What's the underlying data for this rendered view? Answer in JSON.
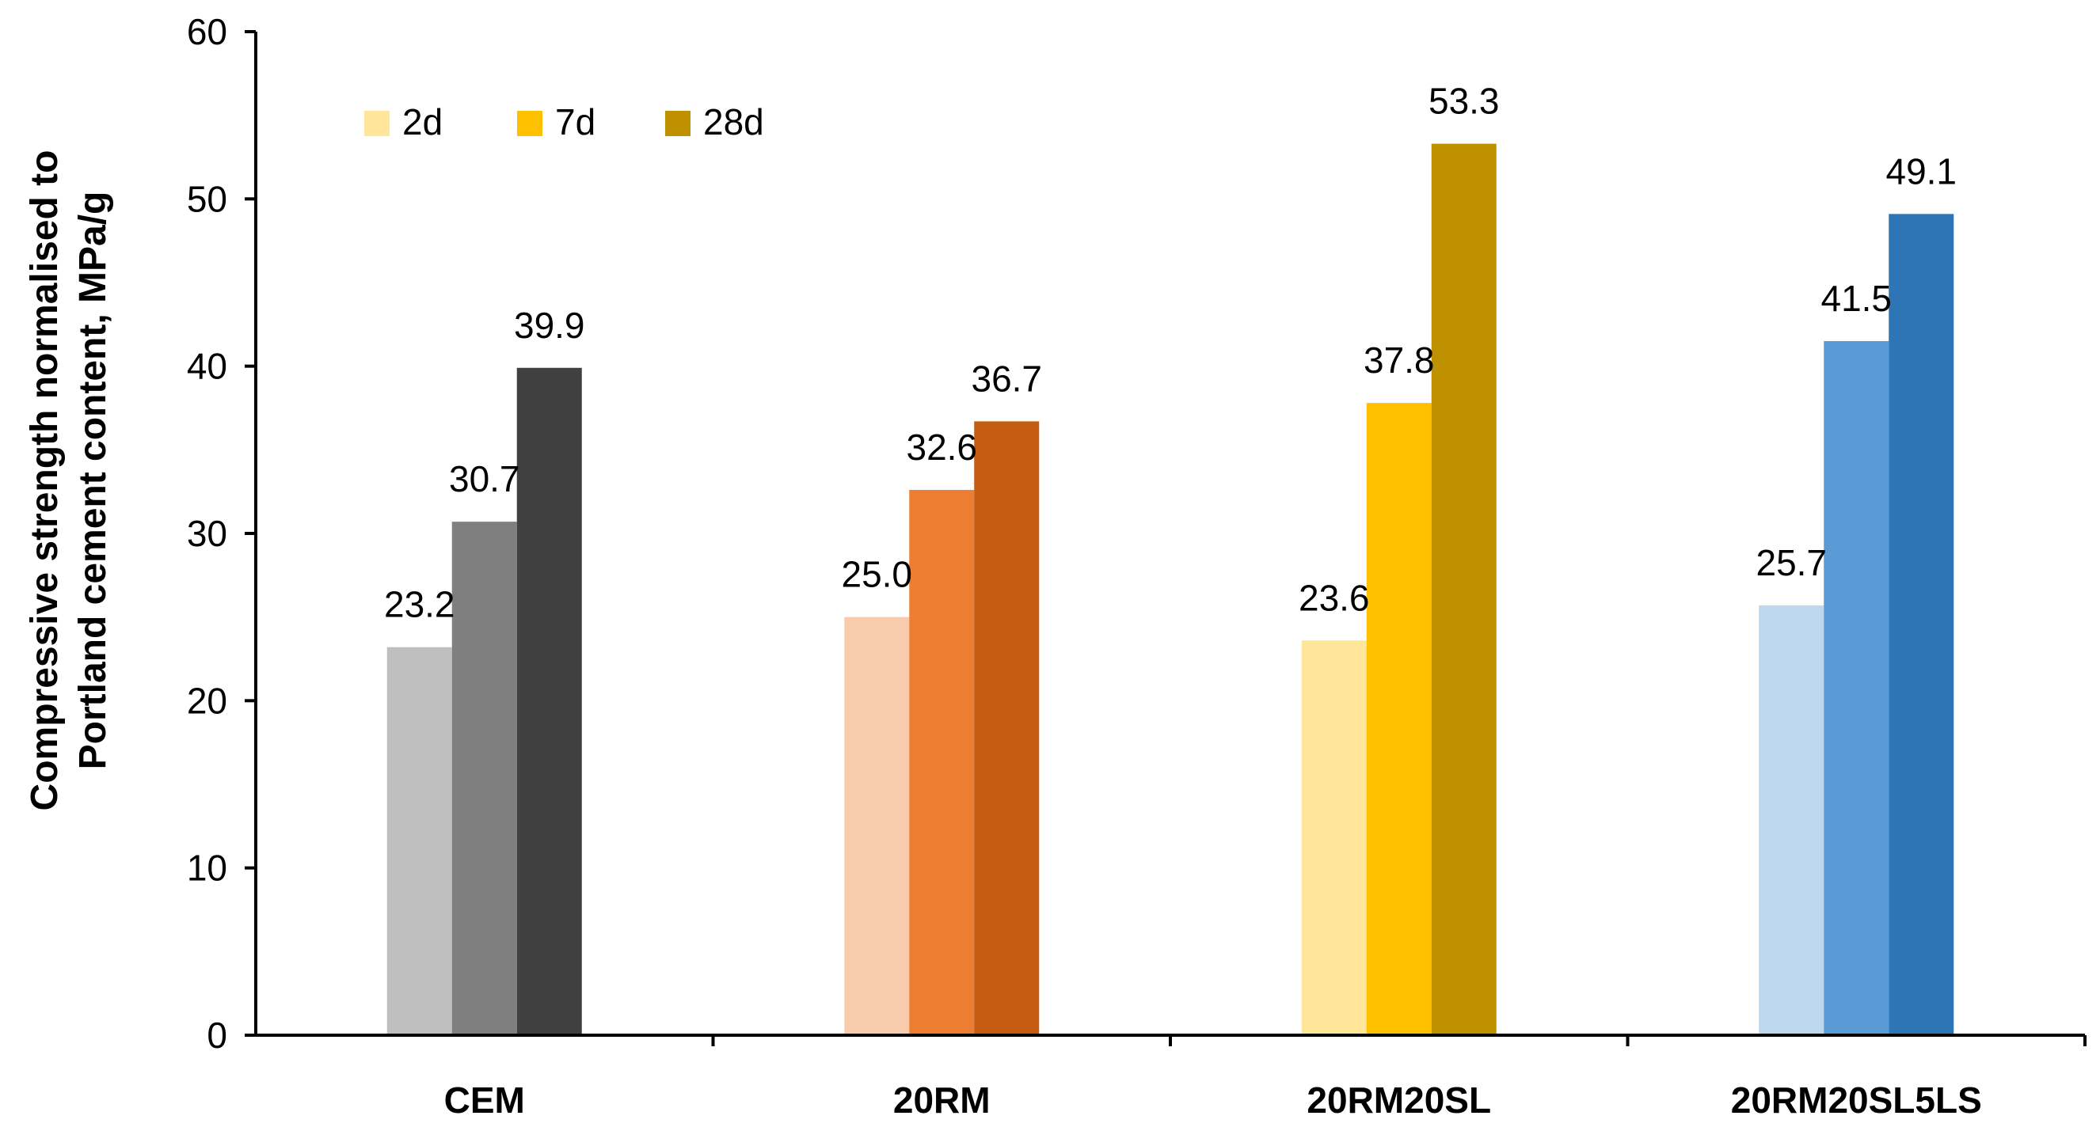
{
  "chart_data": {
    "type": "bar",
    "title": "",
    "xlabel": "",
    "ylabel": "Compressive strength normalised to Portland cement content, MPa/g",
    "ylabel_lines": [
      "Compressive strength normalised to",
      "Portland cement content, MPa/g"
    ],
    "ylim": [
      0,
      60
    ],
    "yticks": [
      0,
      10,
      20,
      30,
      40,
      50,
      60
    ],
    "grid": false,
    "legend_position": "top-left",
    "legend": [
      "2d",
      "7d",
      "28d"
    ],
    "legend_colors": [
      "#FFE699",
      "#FFC000",
      "#BF9000"
    ],
    "categories": [
      "CEM",
      "20RM",
      "20RM20SL",
      "20RM20SL5LS"
    ],
    "series": [
      {
        "name": "2d",
        "values": [
          23.2,
          25.0,
          23.6,
          25.7
        ]
      },
      {
        "name": "7d",
        "values": [
          30.7,
          32.6,
          37.8,
          41.5
        ]
      },
      {
        "name": "28d",
        "values": [
          39.9,
          36.7,
          53.3,
          49.1
        ]
      }
    ],
    "data_labels": [
      [
        "23.2",
        "25.0",
        "23.6",
        "25.7"
      ],
      [
        "30.7",
        "32.6",
        "37.8",
        "41.5"
      ],
      [
        "39.9",
        "36.7",
        "53.3",
        "49.1"
      ]
    ],
    "bar_colors": [
      [
        "#BFBFBF",
        "#F8CBAD",
        "#FFE699",
        "#BDD7EE"
      ],
      [
        "#7F7F7F",
        "#ED7D31",
        "#FFC000",
        "#5B9BD5"
      ],
      [
        "#404040",
        "#C55A11",
        "#BF9000",
        "#2E75B6"
      ]
    ]
  }
}
